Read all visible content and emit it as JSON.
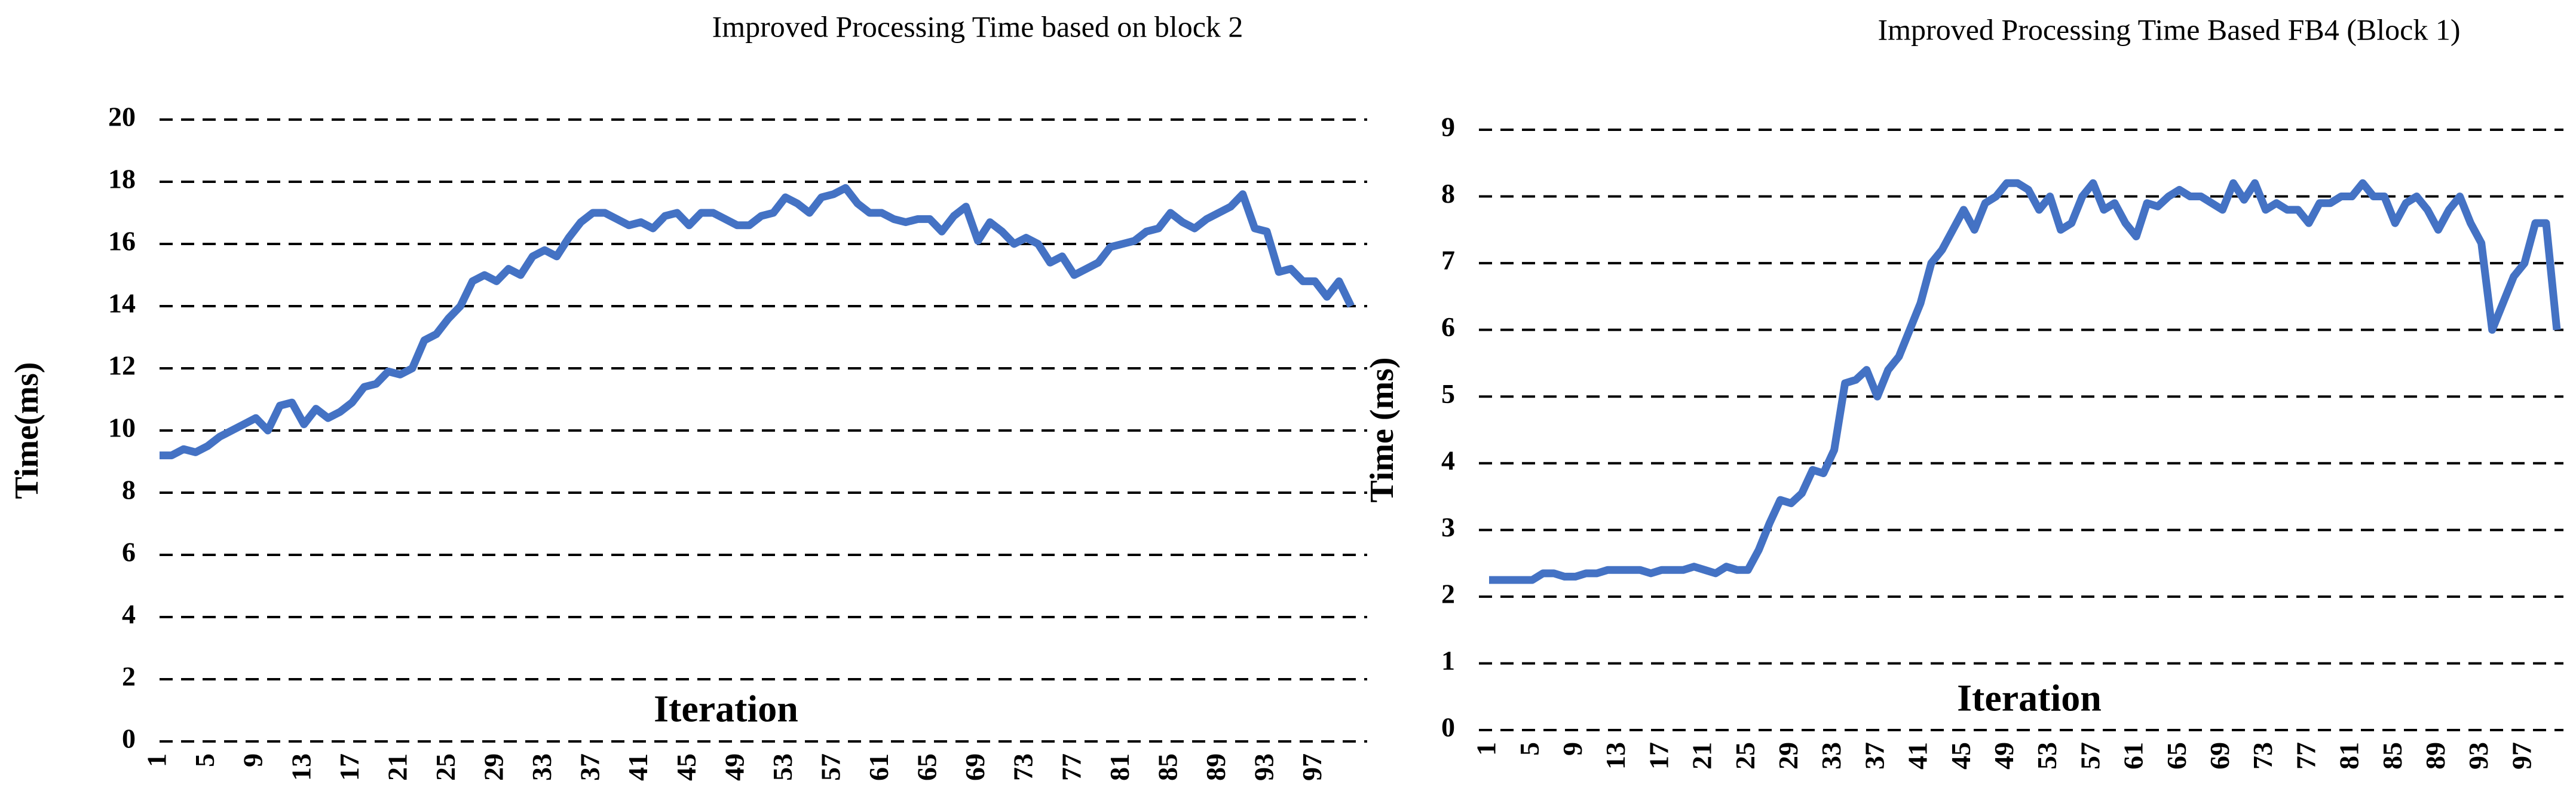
{
  "chart_data": [
    {
      "type": "line",
      "title": "Improved Processing Time based on block 2",
      "x_label": "Iteration",
      "y_label": "Time(ms)",
      "x": [
        1,
        2,
        3,
        4,
        5,
        6,
        7,
        8,
        9,
        10,
        11,
        12,
        13,
        14,
        15,
        16,
        17,
        18,
        19,
        20,
        21,
        22,
        23,
        24,
        25,
        26,
        27,
        28,
        29,
        30,
        31,
        32,
        33,
        34,
        35,
        36,
        37,
        38,
        39,
        40,
        41,
        42,
        43,
        44,
        45,
        46,
        47,
        48,
        49,
        50,
        51,
        52,
        53,
        54,
        55,
        56,
        57,
        58,
        59,
        60,
        61,
        62,
        63,
        64,
        65,
        66,
        67,
        68,
        69,
        70,
        71,
        72,
        73,
        74,
        75,
        76,
        77,
        78,
        79,
        80,
        81,
        82,
        83,
        84,
        85,
        86,
        87,
        88,
        89,
        90,
        91,
        92,
        93,
        94,
        95,
        96,
        97,
        98,
        99,
        100
      ],
      "series": [
        {
          "color": "#4472c4",
          "values": [
            9.2,
            9.2,
            9.4,
            9.3,
            9.5,
            9.8,
            10.0,
            10.2,
            10.4,
            10.0,
            10.8,
            10.9,
            10.2,
            10.7,
            10.4,
            10.6,
            10.9,
            11.4,
            11.5,
            11.9,
            11.8,
            12.0,
            12.9,
            13.1,
            13.6,
            14.0,
            14.8,
            15.0,
            14.8,
            15.2,
            15.0,
            15.6,
            15.8,
            15.6,
            16.2,
            16.7,
            17.0,
            17.0,
            16.8,
            16.6,
            16.7,
            16.5,
            16.9,
            17.0,
            16.6,
            17.0,
            17.0,
            16.8,
            16.6,
            16.6,
            16.9,
            17.0,
            17.5,
            17.3,
            17.0,
            17.5,
            17.6,
            17.8,
            17.3,
            17.0,
            17.0,
            16.8,
            16.7,
            16.8,
            16.8,
            16.4,
            16.9,
            17.2,
            16.1,
            16.7,
            16.4,
            16.0,
            16.2,
            16.0,
            15.4,
            15.6,
            15.0,
            15.2,
            15.4,
            15.9,
            16.0,
            16.1,
            16.4,
            16.5,
            17.0,
            16.7,
            16.5,
            16.8,
            17.0,
            17.2,
            17.6,
            16.5,
            16.4,
            15.1,
            15.2,
            14.8,
            14.8,
            14.3,
            14.8,
            14.0
          ]
        }
      ],
      "xlim": [
        1,
        100
      ],
      "xticks": [
        1,
        5,
        9,
        13,
        17,
        21,
        25,
        29,
        33,
        37,
        41,
        45,
        49,
        53,
        57,
        61,
        65,
        69,
        73,
        77,
        81,
        85,
        89,
        93,
        97
      ],
      "ylim": [
        0,
        20
      ],
      "yticks": [
        0,
        2,
        4,
        6,
        8,
        10,
        12,
        14,
        16,
        18,
        20
      ],
      "grid": true
    },
    {
      "type": "line",
      "title": "Improved Processing Time Based FB4 (Block 1)",
      "x_label": "Iteration",
      "y_label": "Time (ms)",
      "x": [
        1,
        2,
        3,
        4,
        5,
        6,
        7,
        8,
        9,
        10,
        11,
        12,
        13,
        14,
        15,
        16,
        17,
        18,
        19,
        20,
        21,
        22,
        23,
        24,
        25,
        26,
        27,
        28,
        29,
        30,
        31,
        32,
        33,
        34,
        35,
        36,
        37,
        38,
        39,
        40,
        41,
        42,
        43,
        44,
        45,
        46,
        47,
        48,
        49,
        50,
        51,
        52,
        53,
        54,
        55,
        56,
        57,
        58,
        59,
        60,
        61,
        62,
        63,
        64,
        65,
        66,
        67,
        68,
        69,
        70,
        71,
        72,
        73,
        74,
        75,
        76,
        77,
        78,
        79,
        80,
        81,
        82,
        83,
        84,
        85,
        86,
        87,
        88,
        89,
        90,
        91,
        92,
        93,
        94,
        95,
        96,
        97,
        98,
        99,
        100
      ],
      "series": [
        {
          "color": "#4472c4",
          "values": [
            2.25,
            2.25,
            2.25,
            2.25,
            2.25,
            2.35,
            2.35,
            2.3,
            2.3,
            2.35,
            2.35,
            2.4,
            2.4,
            2.4,
            2.4,
            2.35,
            2.4,
            2.4,
            2.4,
            2.45,
            2.4,
            2.35,
            2.45,
            2.4,
            2.4,
            2.7,
            3.1,
            3.45,
            3.4,
            3.55,
            3.9,
            3.85,
            4.2,
            5.2,
            5.25,
            5.4,
            5.0,
            5.4,
            5.6,
            6.0,
            6.4,
            7.0,
            7.2,
            7.5,
            7.8,
            7.5,
            7.9,
            8.0,
            8.2,
            8.2,
            8.1,
            7.8,
            8.0,
            7.5,
            7.6,
            8.0,
            8.2,
            7.8,
            7.9,
            7.6,
            7.4,
            7.9,
            7.85,
            8.0,
            8.1,
            8.0,
            8.0,
            7.9,
            7.8,
            8.2,
            7.95,
            8.2,
            7.8,
            7.9,
            7.8,
            7.8,
            7.6,
            7.9,
            7.9,
            8.0,
            8.0,
            8.2,
            8.0,
            8.0,
            7.6,
            7.9,
            8.0,
            7.8,
            7.5,
            7.8,
            8.0,
            7.6,
            7.3,
            6.0,
            6.4,
            6.8,
            7.0,
            7.6,
            7.6,
            6.0
          ]
        }
      ],
      "xlim": [
        1,
        100
      ],
      "xticks": [
        1,
        5,
        9,
        13,
        17,
        21,
        25,
        29,
        33,
        37,
        41,
        45,
        49,
        53,
        57,
        61,
        65,
        69,
        73,
        77,
        81,
        85,
        89,
        93,
        97
      ],
      "ylim": [
        0,
        9
      ],
      "yticks": [
        0,
        1,
        2,
        3,
        4,
        5,
        6,
        7,
        8,
        9
      ],
      "grid": true
    }
  ]
}
